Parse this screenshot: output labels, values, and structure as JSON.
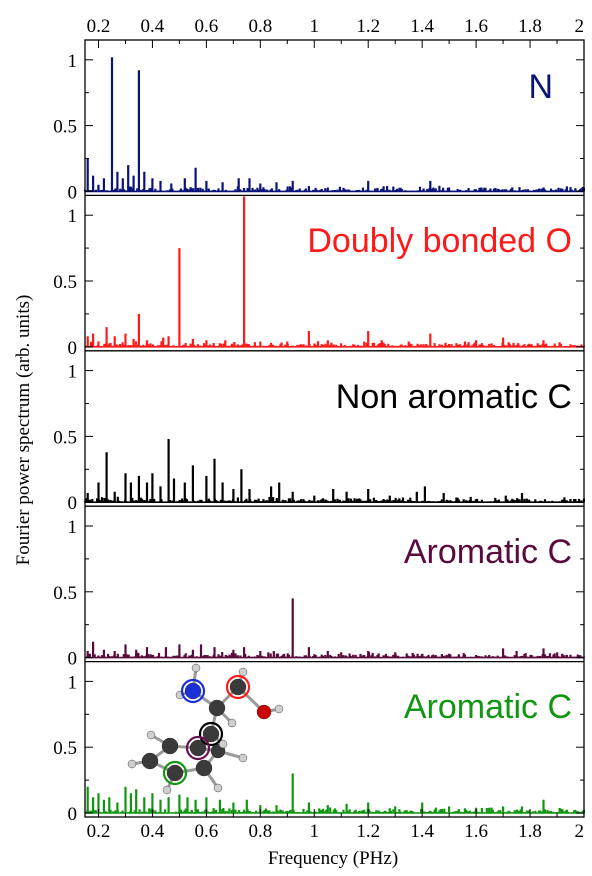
{
  "chart_data": {
    "type": "line",
    "xlabel": "Frequency (PHz)",
    "ylabel": "Fourier power spectrum (arb. units)",
    "xlim": [
      0.15,
      2.0
    ],
    "x_ticks": [
      "0.2",
      "0.4",
      "0.6",
      "0.8",
      "1",
      "1.2",
      "1.4",
      "1.6",
      "1.8",
      "2"
    ],
    "x_tick_values": [
      0.2,
      0.4,
      0.6,
      0.8,
      1.0,
      1.2,
      1.4,
      1.6,
      1.8,
      2.0
    ],
    "y_ticks": [
      "0",
      "0.5",
      "1"
    ],
    "y_tick_values": [
      0,
      0.5,
      1
    ],
    "ylim": [
      0,
      1.12
    ],
    "grid": false,
    "panels": [
      {
        "label": "N",
        "color": "#0a1478",
        "peaks": [
          [
            0.16,
            0.25
          ],
          [
            0.18,
            0.12
          ],
          [
            0.2,
            0.05
          ],
          [
            0.22,
            0.1
          ],
          [
            0.25,
            1.02
          ],
          [
            0.27,
            0.15
          ],
          [
            0.29,
            0.1
          ],
          [
            0.31,
            0.2
          ],
          [
            0.33,
            0.12
          ],
          [
            0.35,
            0.92
          ],
          [
            0.37,
            0.15
          ],
          [
            0.4,
            0.1
          ],
          [
            0.43,
            0.08
          ],
          [
            0.47,
            0.06
          ],
          [
            0.52,
            0.1
          ],
          [
            0.56,
            0.18
          ],
          [
            0.6,
            0.08
          ],
          [
            0.66,
            0.07
          ],
          [
            0.72,
            0.1
          ],
          [
            0.76,
            0.1
          ],
          [
            0.8,
            0.06
          ],
          [
            0.86,
            0.07
          ],
          [
            0.92,
            0.08
          ],
          [
            0.98,
            0.04
          ],
          [
            1.05,
            0.03
          ],
          [
            1.2,
            0.08
          ],
          [
            1.27,
            0.04
          ],
          [
            1.43,
            0.08
          ],
          [
            1.5,
            0.03
          ],
          [
            1.62,
            0.03
          ],
          [
            1.85,
            0.03
          ],
          [
            1.92,
            0.02
          ]
        ]
      },
      {
        "label": "Doubly bonded O",
        "color": "#ff1a1a",
        "peaks": [
          [
            0.16,
            0.08
          ],
          [
            0.18,
            0.1
          ],
          [
            0.2,
            0.04
          ],
          [
            0.23,
            0.15
          ],
          [
            0.26,
            0.08
          ],
          [
            0.3,
            0.1
          ],
          [
            0.33,
            0.06
          ],
          [
            0.35,
            0.25
          ],
          [
            0.38,
            0.05
          ],
          [
            0.44,
            0.07
          ],
          [
            0.46,
            0.08
          ],
          [
            0.5,
            0.75
          ],
          [
            0.55,
            0.06
          ],
          [
            0.6,
            0.05
          ],
          [
            0.67,
            0.05
          ],
          [
            0.74,
            1.2
          ],
          [
            0.8,
            0.04
          ],
          [
            0.84,
            0.03
          ],
          [
            0.9,
            0.04
          ],
          [
            0.98,
            0.12
          ],
          [
            1.05,
            0.05
          ],
          [
            1.2,
            0.12
          ],
          [
            1.25,
            0.05
          ],
          [
            1.35,
            0.04
          ],
          [
            1.43,
            0.1
          ],
          [
            1.6,
            0.05
          ],
          [
            1.7,
            0.07
          ],
          [
            1.85,
            0.05
          ],
          [
            1.95,
            0.02
          ]
        ]
      },
      {
        "label": "Non aromatic C",
        "color": "#000000",
        "peaks": [
          [
            0.16,
            0.07
          ],
          [
            0.2,
            0.15
          ],
          [
            0.23,
            0.38
          ],
          [
            0.26,
            0.08
          ],
          [
            0.3,
            0.22
          ],
          [
            0.32,
            0.15
          ],
          [
            0.35,
            0.2
          ],
          [
            0.38,
            0.15
          ],
          [
            0.4,
            0.22
          ],
          [
            0.43,
            0.12
          ],
          [
            0.46,
            0.48
          ],
          [
            0.48,
            0.18
          ],
          [
            0.52,
            0.15
          ],
          [
            0.55,
            0.28
          ],
          [
            0.6,
            0.2
          ],
          [
            0.63,
            0.33
          ],
          [
            0.66,
            0.15
          ],
          [
            0.7,
            0.1
          ],
          [
            0.73,
            0.25
          ],
          [
            0.76,
            0.1
          ],
          [
            0.84,
            0.12
          ],
          [
            0.87,
            0.15
          ],
          [
            0.92,
            0.08
          ],
          [
            1.0,
            0.05
          ],
          [
            1.07,
            0.1
          ],
          [
            1.12,
            0.08
          ],
          [
            1.2,
            0.1
          ],
          [
            1.28,
            0.05
          ],
          [
            1.38,
            0.08
          ],
          [
            1.41,
            0.12
          ],
          [
            1.48,
            0.07
          ],
          [
            1.58,
            0.04
          ],
          [
            1.71,
            0.05
          ],
          [
            1.77,
            0.07
          ],
          [
            1.92,
            0.02
          ]
        ]
      },
      {
        "label": "Aromatic C",
        "color": "#5a0a3c",
        "peaks": [
          [
            0.16,
            0.05
          ],
          [
            0.18,
            0.12
          ],
          [
            0.22,
            0.06
          ],
          [
            0.26,
            0.05
          ],
          [
            0.3,
            0.1
          ],
          [
            0.34,
            0.06
          ],
          [
            0.38,
            0.08
          ],
          [
            0.45,
            0.08
          ],
          [
            0.5,
            0.1
          ],
          [
            0.55,
            0.06
          ],
          [
            0.58,
            0.1
          ],
          [
            0.63,
            0.08
          ],
          [
            0.7,
            0.06
          ],
          [
            0.74,
            0.08
          ],
          [
            0.8,
            0.05
          ],
          [
            0.85,
            0.05
          ],
          [
            0.92,
            0.45
          ],
          [
            0.98,
            0.08
          ],
          [
            1.05,
            0.05
          ],
          [
            1.1,
            0.04
          ],
          [
            1.2,
            0.05
          ],
          [
            1.3,
            0.04
          ],
          [
            1.4,
            0.03
          ],
          [
            1.5,
            0.03
          ],
          [
            1.6,
            0.02
          ],
          [
            1.7,
            0.07
          ],
          [
            1.75,
            0.05
          ],
          [
            1.85,
            0.07
          ],
          [
            1.92,
            0.03
          ]
        ]
      },
      {
        "label": "Aromatic C",
        "color": "#119611",
        "peaks": [
          [
            0.16,
            0.2
          ],
          [
            0.18,
            0.12
          ],
          [
            0.2,
            0.15
          ],
          [
            0.22,
            0.1
          ],
          [
            0.24,
            0.12
          ],
          [
            0.27,
            0.08
          ],
          [
            0.3,
            0.2
          ],
          [
            0.32,
            0.15
          ],
          [
            0.34,
            0.18
          ],
          [
            0.37,
            0.12
          ],
          [
            0.4,
            0.15
          ],
          [
            0.43,
            0.1
          ],
          [
            0.46,
            0.12
          ],
          [
            0.5,
            0.14
          ],
          [
            0.53,
            0.12
          ],
          [
            0.56,
            0.1
          ],
          [
            0.6,
            0.12
          ],
          [
            0.65,
            0.1
          ],
          [
            0.7,
            0.08
          ],
          [
            0.75,
            0.1
          ],
          [
            0.8,
            0.06
          ],
          [
            0.86,
            0.06
          ],
          [
            0.92,
            0.3
          ],
          [
            0.98,
            0.08
          ],
          [
            1.05,
            0.06
          ],
          [
            1.12,
            0.07
          ],
          [
            1.2,
            0.08
          ],
          [
            1.3,
            0.05
          ],
          [
            1.4,
            0.08
          ],
          [
            1.5,
            0.05
          ],
          [
            1.6,
            0.04
          ],
          [
            1.7,
            0.05
          ],
          [
            1.77,
            0.05
          ],
          [
            1.85,
            0.1
          ],
          [
            1.92,
            0.03
          ]
        ]
      }
    ]
  },
  "molecule": {
    "atom_colors": {
      "carbon": "#3a3a3a",
      "hydrogen": "#cfcfcf",
      "nitrogen": "#1a2fd6",
      "oxygen": "#cc0000"
    },
    "marker_colors": [
      "#1a2fd6",
      "#ff1a1a",
      "#000000",
      "#6a1050",
      "#119611"
    ]
  }
}
